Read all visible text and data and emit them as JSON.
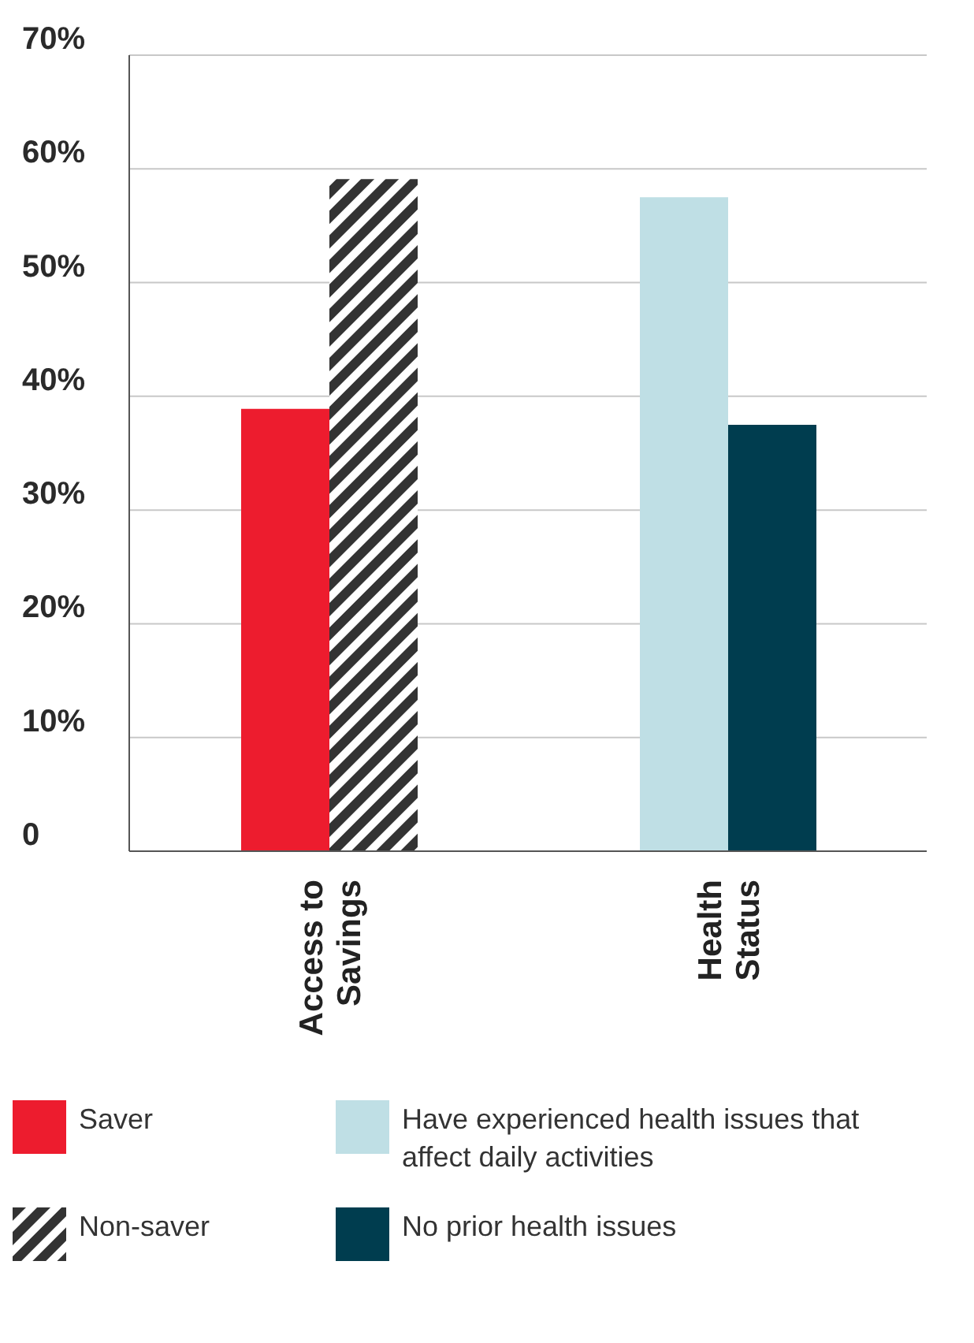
{
  "chart_data": {
    "type": "bar",
    "categories": [
      "Access to Savings",
      "Health Status"
    ],
    "series": [
      {
        "name": "Saver",
        "color": "#ed1c2e",
        "values": [
          38.9,
          null
        ]
      },
      {
        "name": "Non-saver",
        "color": "#333333",
        "values": [
          59.1,
          null
        ]
      },
      {
        "name": "Have experienced health issues that affect daily activities",
        "color": "#bfdfe5",
        "values": [
          null,
          57.5
        ]
      },
      {
        "name": "No prior health issues",
        "color": "#003d4f",
        "values": [
          null,
          37.5
        ]
      }
    ],
    "ylim": [
      0,
      70
    ],
    "yticks": [
      {
        "value": 0,
        "label": "0"
      },
      {
        "value": 10,
        "label": "10%"
      },
      {
        "value": 20,
        "label": "20%"
      },
      {
        "value": 30,
        "label": "30%"
      },
      {
        "value": 40,
        "label": "40%"
      },
      {
        "value": 50,
        "label": "50%"
      },
      {
        "value": 60,
        "label": "60%"
      },
      {
        "value": 70,
        "label": "70%"
      }
    ],
    "grid": "y",
    "legend": "bottom"
  }
}
